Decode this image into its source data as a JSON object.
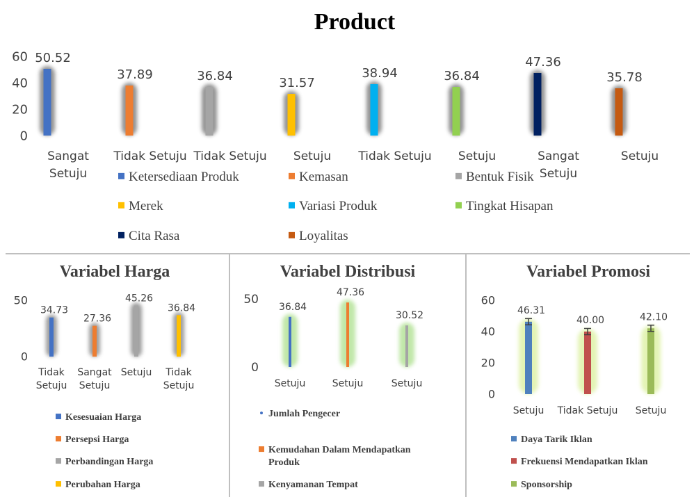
{
  "title": "Product",
  "colors": {
    "blue": "#4472C4",
    "orange": "#ED7D31",
    "gray": "#A5A5A5",
    "yellow": "#FFC000",
    "light_blue": "#00B0F0",
    "green": "#92D050",
    "navy": "#002060",
    "dark_orange": "#C55A11",
    "red": "#C0504D",
    "olive": "#9BBB59",
    "axis_text": "#404040",
    "divider": "#bfbfbf"
  },
  "chart_data": [
    {
      "id": "product",
      "type": "bar",
      "title": "Product",
      "categories": [
        "Sangat Setuju",
        "Tidak Setuju",
        "Tidak Setuju",
        "Setuju",
        "Tidak Setuju",
        "Setuju",
        "Sangat Setuju",
        "Setuju"
      ],
      "values": [
        50.52,
        37.89,
        36.84,
        31.57,
        38.94,
        36.84,
        47.36,
        35.78
      ],
      "value_labels": [
        "50.52",
        "37.89",
        "36.84",
        "31.57",
        "38.94",
        "36.84",
        "47.36",
        "35.78"
      ],
      "series_names": [
        "Ketersediaan Produk",
        "Kemasan",
        "Bentuk Fisik",
        "Merek",
        "Variasi Produk",
        "Tingkat Hisapan",
        "Cita Rasa",
        "Loyalitas"
      ],
      "series_colors": [
        "#4472C4",
        "#ED7D31",
        "#A5A5A5",
        "#FFC000",
        "#00B0F0",
        "#92D050",
        "#002060",
        "#C55A11"
      ],
      "glow": "#7f7f7f",
      "ylim": [
        0,
        60
      ],
      "yticks": [
        "0",
        "20",
        "40",
        "60"
      ],
      "grid": false,
      "legend_position": "bottom"
    },
    {
      "id": "harga",
      "type": "bar",
      "title": "Variabel Harga",
      "categories": [
        "Tidak Setuju",
        "Sangat Setuju",
        "Setuju",
        "Tidak Setuju"
      ],
      "values": [
        34.73,
        27.36,
        45.26,
        36.84
      ],
      "value_labels": [
        "34.73",
        "27.36",
        "45.26",
        "36.84"
      ],
      "series_names": [
        "Kesesuaian Harga",
        "Persepsi Harga",
        "Perbandingan Harga",
        "Perubahan Harga"
      ],
      "series_colors": [
        "#4472C4",
        "#ED7D31",
        "#A5A5A5",
        "#FFC000"
      ],
      "glow": "#8c8c8c",
      "ylim": [
        0,
        50
      ],
      "yticks": [
        "0",
        "50"
      ],
      "grid": false,
      "legend_position": "bottom"
    },
    {
      "id": "distribusi",
      "type": "bar",
      "title": "Variabel Distribusi",
      "categories": [
        "Setuju",
        "Setuju",
        "Setuju"
      ],
      "values": [
        36.84,
        47.36,
        30.52
      ],
      "value_labels": [
        "36.84",
        "47.36",
        "30.52"
      ],
      "series_names": [
        "Jumlah Pengecer",
        "Kemudahan Dalam Mendapatkan Produk",
        "Kenyamanan Tempat"
      ],
      "series_colors": [
        "#4472C4",
        "#ED7D31",
        "#A5A5A5"
      ],
      "glow": "#b6e39a",
      "ylim": [
        0,
        50
      ],
      "yticks": [
        "0",
        "50"
      ],
      "grid": false,
      "legend_position": "bottom"
    },
    {
      "id": "promosi",
      "type": "bar",
      "title": "Variabel Promosi",
      "categories": [
        "Setuju",
        "Tidak Setuju",
        "Setuju"
      ],
      "values": [
        46.31,
        40.0,
        42.1
      ],
      "value_labels": [
        "46.31",
        "40.00",
        "42.10"
      ],
      "error_bars": [
        2.0,
        2.0,
        2.0
      ],
      "series_names": [
        "Daya Tarik Iklan",
        "Frekuensi Mendapatkan Iklan",
        "Sponsorship"
      ],
      "series_colors": [
        "#4F81BD",
        "#C0504D",
        "#9BBB59"
      ],
      "glow": "#dff2a8",
      "ylim": [
        0,
        60
      ],
      "yticks": [
        "0",
        "20",
        "40",
        "60"
      ],
      "grid": false,
      "legend_position": "bottom"
    }
  ]
}
